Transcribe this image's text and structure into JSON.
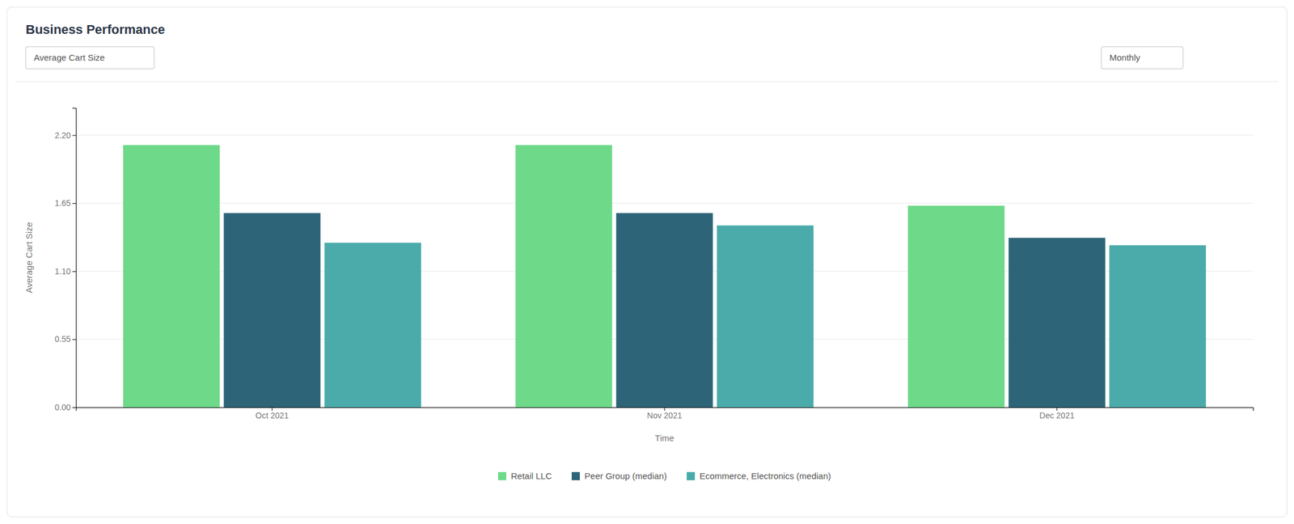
{
  "chart_data": {
    "type": "bar",
    "title": "Business Performance",
    "annotations": [
      "Average Cart Size",
      "Monthly"
    ],
    "categories": [
      "Oct 2021",
      "Nov 2021",
      "Dec 2021"
    ],
    "series": [
      {
        "name": "Retail LLC",
        "color": "#6FD98A",
        "values": [
          2.12,
          2.12,
          1.63
        ]
      },
      {
        "name": "Peer Group (median)",
        "color": "#2E6478",
        "values": [
          1.57,
          1.57,
          1.37
        ]
      },
      {
        "name": "Ecommerce, Electronics (median)",
        "color": "#4AABAA",
        "values": [
          1.33,
          1.47,
          1.31
        ]
      }
    ],
    "xlabel": "Time",
    "ylabel": "Average Cart Size",
    "ylim": [
      0,
      2.42
    ],
    "yticks": [
      {
        "value": 0,
        "label": "0.00"
      },
      0.55,
      {
        "value": 1.1,
        "label": "1.10"
      },
      1.65,
      {
        "value": 2.2,
        "label": "2.20"
      }
    ],
    "grid": true,
    "legend": "bottom"
  }
}
